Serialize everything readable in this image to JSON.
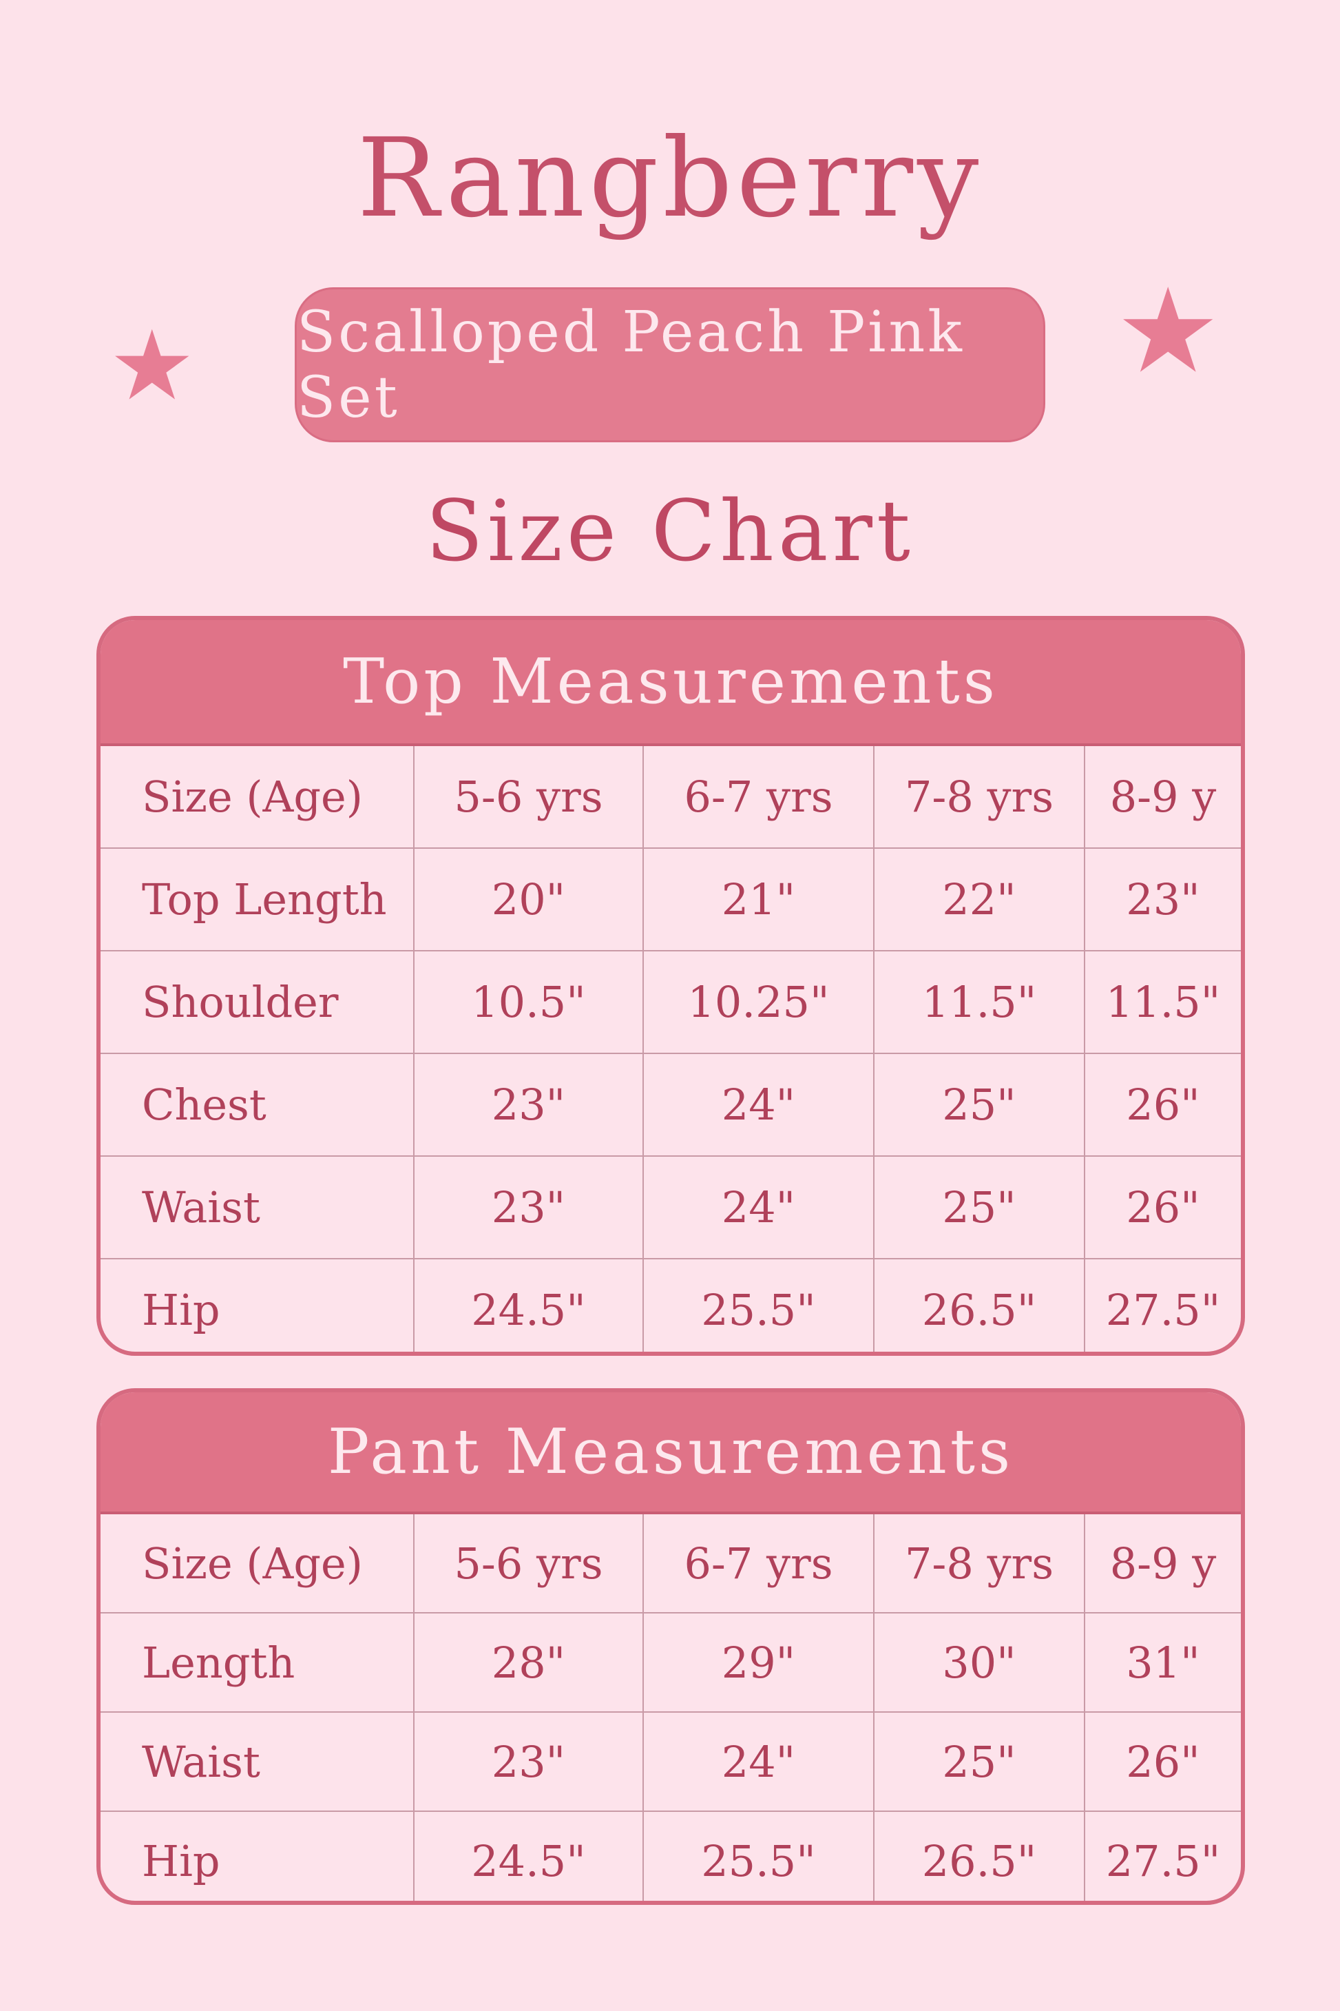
{
  "brand": "Rangberry",
  "product_badge": "Scalloped Peach Pink Set",
  "subtitle": "Size Chart",
  "icons": {
    "left": "star-icon",
    "right": "star-icon"
  },
  "colors": {
    "background": "#fde2ea",
    "header": "#e07388",
    "text": "#b4465f",
    "badge": "#e37c90"
  },
  "top_table": {
    "title": "Top Measurements",
    "rows": [
      [
        "Size (Age)",
        "5-6 yrs",
        "6-7 yrs",
        "7-8 yrs",
        "8-9 y"
      ],
      [
        "Top Length",
        "20\"",
        "21\"",
        "22\"",
        "23\""
      ],
      [
        "Shoulder",
        "10.5\"",
        "10.25\"",
        "11.5\"",
        "11.5\""
      ],
      [
        "Chest",
        "23\"",
        "24\"",
        "25\"",
        "26\""
      ],
      [
        "Waist",
        "23\"",
        "24\"",
        "25\"",
        "26\""
      ],
      [
        "Hip",
        "24.5\"",
        "25.5\"",
        "26.5\"",
        "27.5\""
      ]
    ]
  },
  "pant_table": {
    "title": "Pant Measurements",
    "rows": [
      [
        "Size (Age)",
        "5-6 yrs",
        "6-7 yrs",
        "7-8 yrs",
        "8-9 y"
      ],
      [
        "Length",
        "28\"",
        "29\"",
        "30\"",
        "31\""
      ],
      [
        "Waist",
        "23\"",
        "24\"",
        "25\"",
        "26\""
      ],
      [
        "Hip",
        "24.5\"",
        "25.5\"",
        "26.5\"",
        "27.5\""
      ]
    ]
  }
}
